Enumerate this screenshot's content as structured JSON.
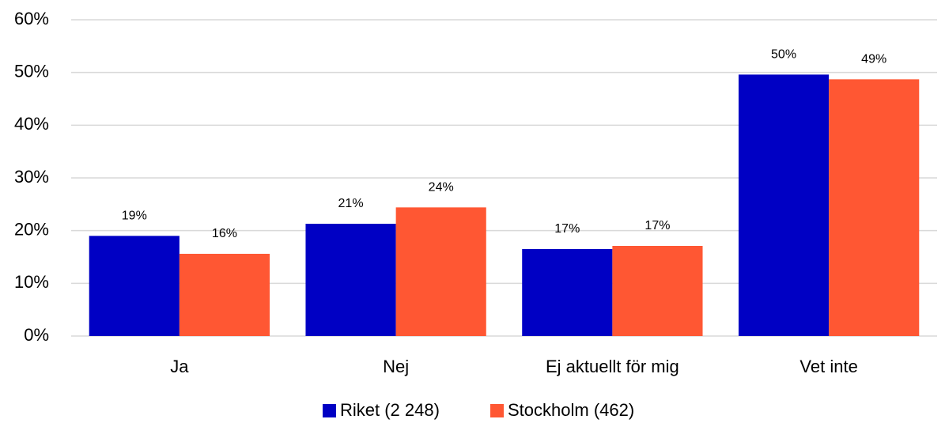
{
  "chart_data": {
    "type": "bar",
    "categories": [
      "Ja",
      "Nej",
      "Ej aktuellt för mig",
      "Vet inte"
    ],
    "series": [
      {
        "name": "Riket (2 248)",
        "color": "#0000C4",
        "values": [
          19.0,
          21.3,
          16.5,
          49.6
        ],
        "value_labels": [
          "19%",
          "21%",
          "17%",
          "50%"
        ]
      },
      {
        "name": "Stockholm (462)",
        "color": "#FF5733",
        "values": [
          15.6,
          24.4,
          17.1,
          48.7
        ],
        "value_labels": [
          "16%",
          "24%",
          "17%",
          "49%"
        ]
      }
    ],
    "ylim": [
      0,
      60
    ],
    "yticks": [
      {
        "value": 0,
        "label": "0%"
      },
      {
        "value": 10,
        "label": "10%"
      },
      {
        "value": 20,
        "label": "20%"
      },
      {
        "value": 30,
        "label": "30%"
      },
      {
        "value": 40,
        "label": "40%"
      },
      {
        "value": 50,
        "label": "50%"
      },
      {
        "value": 60,
        "label": "60%"
      }
    ],
    "grid": true,
    "legend": "bottom"
  }
}
